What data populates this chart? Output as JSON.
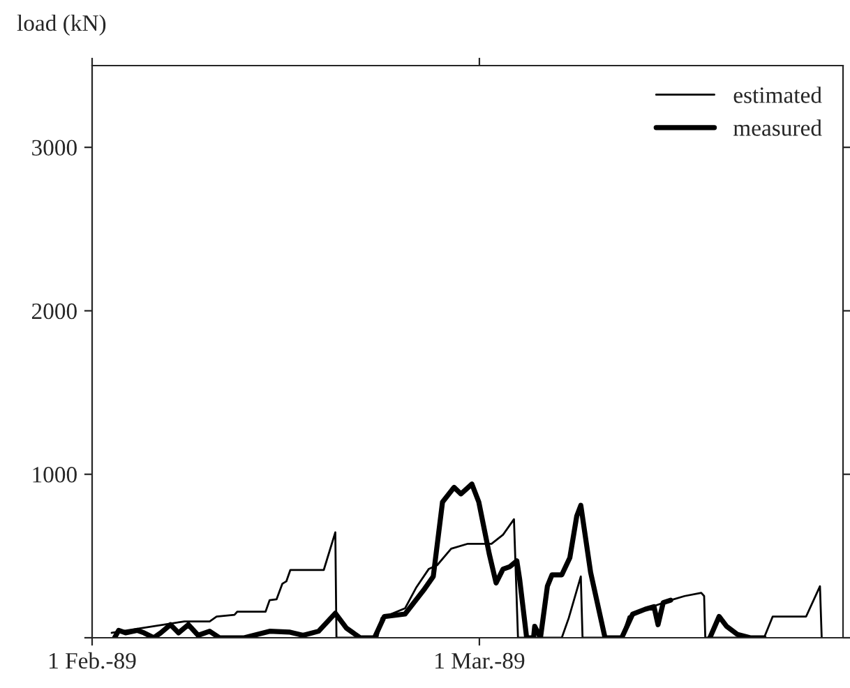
{
  "chart_data": {
    "type": "line",
    "ylabel": "load (kN)",
    "xlim": [
      "1989-02-01",
      "1989-03-27T07:00"
    ],
    "xticks": [
      {
        "value": "1989-02-01",
        "label": "1 Feb.-89"
      },
      {
        "value": "1989-03-01",
        "label": "1 Mar.-89"
      }
    ],
    "ylim": [
      0,
      3500
    ],
    "yticks": [
      {
        "value": 0,
        "label": null
      },
      1000,
      2000,
      3000
    ],
    "grid": false,
    "legend": "top right",
    "marker": "none",
    "line_style": "solid",
    "series": [
      {
        "name": "estimated",
        "color": "#000000",
        "x": [
          "1989-02-02T10:00",
          "1989-02-07T16:00",
          "1989-02-09T12:00",
          "1989-02-10T00:00",
          "1989-02-11T07:00",
          "1989-02-11T12:00",
          "1989-02-13T13:00",
          "1989-02-13T20:00",
          "1989-02-14T08:00",
          "1989-02-14T18:00",
          "1989-02-15T01:00",
          "1989-02-15T08:00",
          "1989-02-17T18:00",
          "1989-02-18T14:00",
          "1989-02-18T16:00",
          "1989-02-21T15:00",
          "1989-02-21T22:00",
          "1989-02-23T15:00",
          "1989-02-24T10:00",
          "1989-02-25T08:00",
          "1989-02-25T23:00",
          "1989-02-26T23:00",
          "1989-02-28T04:00",
          "1989-03-01T21:00",
          "1989-03-02T17:00",
          "1989-03-03T12:00",
          "1989-03-03T19:00",
          "1989-03-06T23:00",
          "1989-03-07T11:00",
          "1989-03-08T08:00",
          "1989-03-08T11:00",
          "1989-03-11T07:00",
          "1989-03-11T19:00",
          "1989-03-13T12:00",
          "1989-03-14T20:00",
          "1989-03-15T20:00",
          "1989-03-17T01:00",
          "1989-03-17T06:00",
          "1989-03-17T08:00",
          "1989-03-21T14:00",
          "1989-03-22T05:00",
          "1989-03-24T15:00",
          "1989-03-25T15:00",
          "1989-03-25T18:00"
        ],
        "values": [
          30,
          100,
          100,
          130,
          140,
          160,
          160,
          230,
          235,
          330,
          345,
          415,
          415,
          645,
          0,
          0,
          120,
          180,
          305,
          420,
          445,
          545,
          575,
          575,
          630,
          725,
          0,
          0,
          120,
          375,
          0,
          0,
          130,
          190,
          230,
          255,
          275,
          255,
          0,
          0,
          130,
          130,
          315,
          0
        ]
      },
      {
        "name": "measured",
        "color": "#000000",
        "x": [
          "1989-02-02T15:00",
          "1989-02-02T22:00",
          "1989-02-03T10:00",
          "1989-02-04T06:00",
          "1989-02-04T18:00",
          "1989-02-05T11:00",
          "1989-02-05T23:00",
          "1989-02-06T16:00",
          "1989-02-07T06:00",
          "1989-02-07T23:00",
          "1989-02-08T16:00",
          "1989-02-09T12:00",
          "1989-02-10T05:00",
          "1989-02-12T00:00",
          "1989-02-13T20:00",
          "1989-02-15T06:00",
          "1989-02-16T06:00",
          "1989-02-17T09:00",
          "1989-02-18T14:00",
          "1989-02-19T09:00",
          "1989-02-20T09:00",
          "1989-02-21T10:00",
          "1989-02-22T03:00",
          "1989-02-23T15:00",
          "1989-02-24T23:00",
          "1989-02-25T16:00",
          "1989-02-26T08:00",
          "1989-02-27T04:00",
          "1989-02-27T16:00",
          "1989-02-28T11:00",
          "1989-02-28T23:00",
          "1989-03-01T17:00",
          "1989-03-02T05:00",
          "1989-03-02T17:00",
          "1989-03-03T05:00",
          "1989-03-03T17:00",
          "1989-03-03T22:00",
          "1989-03-04T10:00",
          "1989-03-04T22:00",
          "1989-03-05T00:00",
          "1989-03-05T10:00",
          "1989-03-05T22:00",
          "1989-03-06T06:00",
          "1989-03-06T23:00",
          "1989-03-07T13:00",
          "1989-03-08T01:00",
          "1989-03-08T08:00",
          "1989-03-09T01:00",
          "1989-03-10T02:00",
          "1989-03-11T07:00",
          "1989-03-12T02:00",
          "1989-03-13T00:00",
          "1989-03-13T15:00",
          "1989-03-13T22:00",
          "1989-03-14T07:00",
          "1989-03-14T20:00",
          "1989-03-16T00:00",
          "1989-03-17T16:00",
          "1989-03-18T08:00",
          "1989-03-18T21:00",
          "1989-03-19T16:00",
          "1989-03-20T14:00",
          "1989-03-21T14:00"
        ],
        "values": [
          0,
          45,
          30,
          45,
          30,
          0,
          30,
          80,
          30,
          80,
          15,
          40,
          0,
          0,
          40,
          35,
          15,
          40,
          150,
          60,
          0,
          0,
          130,
          145,
          290,
          375,
          830,
          920,
          880,
          940,
          830,
          515,
          335,
          420,
          435,
          470,
          355,
          0,
          0,
          70,
          0,
          315,
          385,
          385,
          490,
          745,
          810,
          400,
          0,
          0,
          145,
          175,
          190,
          80,
          215,
          230,
          null,
          0,
          130,
          70,
          20,
          0,
          0
        ]
      }
    ]
  }
}
